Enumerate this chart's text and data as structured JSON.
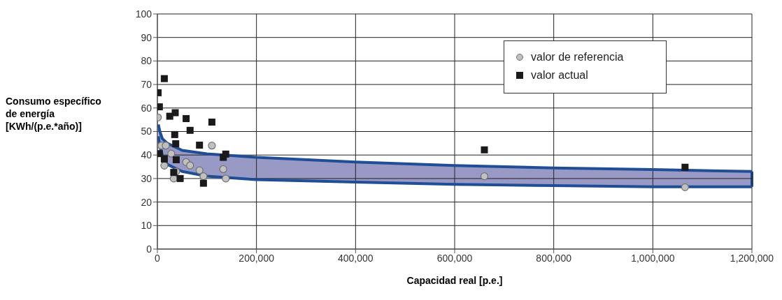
{
  "chart_data": {
    "type": "scatter",
    "xlabel": "Capacidad real [p.e.]",
    "ylabel": "Consumo específico de energía [KWh/(p.e.*año)]",
    "xlim": [
      0,
      1200000
    ],
    "xticks": [
      {
        "value": 0,
        "label": "0"
      },
      {
        "value": 200000,
        "label": "200,000"
      },
      {
        "value": 400000,
        "label": "400,000"
      },
      {
        "value": 600000,
        "label": "600,000"
      },
      {
        "value": 800000,
        "label": "800,000"
      },
      {
        "value": 1000000,
        "label": "1,000,000"
      },
      {
        "value": 1200000,
        "label": "1,200,000"
      }
    ],
    "ylim": [
      0,
      100
    ],
    "yticks": [
      0,
      10,
      20,
      30,
      40,
      50,
      60,
      70,
      80,
      90,
      100
    ],
    "grid": true,
    "legend": "top right",
    "series": [
      {
        "type": "line",
        "color": "#1f4e96",
        "marker": "none",
        "x": [
          2000,
          5000,
          10000,
          20000,
          50000,
          100000,
          200000,
          400000,
          600000,
          800000,
          1000000,
          1200000
        ],
        "values": [
          53,
          50,
          47,
          45,
          42,
          40.5,
          39,
          37,
          35.5,
          34.5,
          33.8,
          33
        ]
      },
      {
        "type": "line",
        "color": "#1f4e96",
        "marker": "none",
        "x": [
          2000,
          5000,
          10000,
          20000,
          50000,
          100000,
          200000,
          400000,
          600000,
          800000,
          1000000,
          1200000
        ],
        "values": [
          48,
          43.5,
          40,
          36,
          33,
          31,
          29.5,
          28.5,
          27.5,
          27,
          26.5,
          26.5
        ]
      },
      {
        "name": "valor de referencia",
        "color": "#c0c0c0",
        "marker": "circle",
        "x": [
          1000,
          8000,
          14000,
          17000,
          28000,
          33000,
          38000,
          58000,
          66000,
          85000,
          93000,
          110000,
          133000,
          138000,
          660000,
          1065000
        ],
        "values": [
          56,
          44,
          35.5,
          44,
          40.6,
          30,
          33,
          37,
          35.6,
          33.5,
          31,
          44,
          34,
          30,
          31,
          26.3
        ]
      },
      {
        "name": "valor actual",
        "color": "#1a1a1a",
        "marker": "square",
        "x": [
          1500,
          4000,
          4000,
          14000,
          14000,
          25000,
          33000,
          35000,
          36000,
          37000,
          38000,
          46000,
          58000,
          66000,
          85000,
          93000,
          110000,
          133000,
          138000,
          660000,
          1065000
        ],
        "values": [
          66.5,
          60.5,
          40.6,
          72.5,
          38.3,
          56.5,
          32.6,
          48.7,
          58,
          44.8,
          38,
          30,
          55.5,
          50.5,
          44.2,
          28,
          54,
          39,
          40.4,
          42.2,
          34.8
        ]
      }
    ]
  }
}
